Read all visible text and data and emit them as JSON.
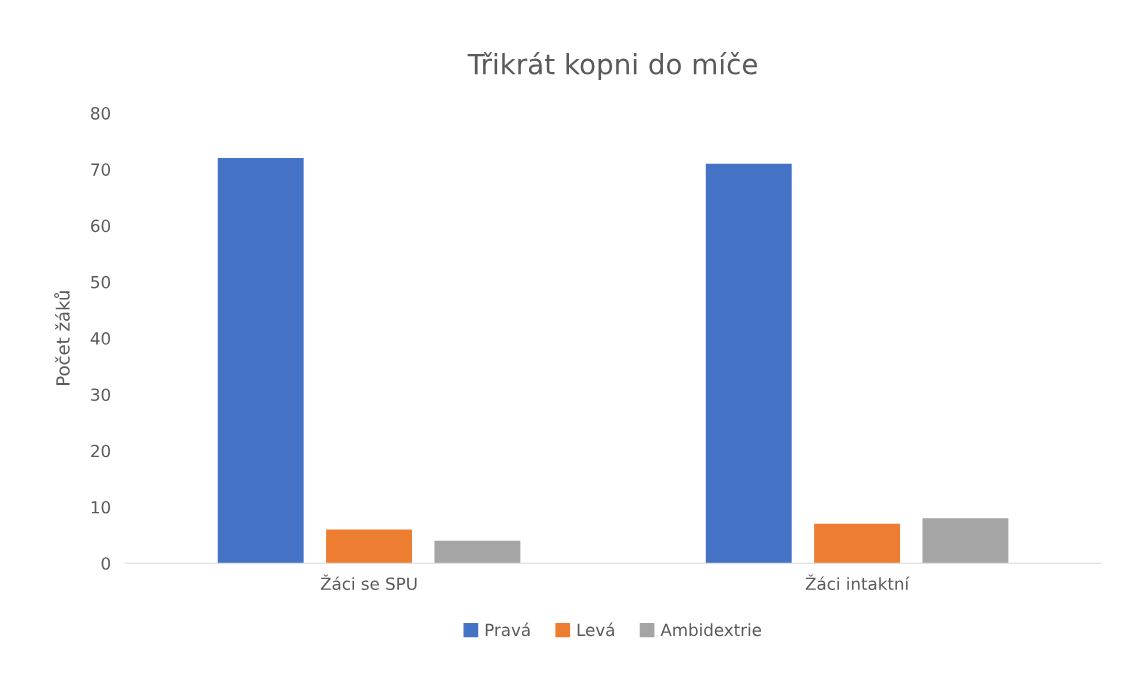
{
  "chart_data": {
    "type": "bar",
    "title": "Třikrát kopni do míče",
    "ylabel": "Počet žáků",
    "categories": [
      "Žáci se SPU",
      "Žáci intaktní"
    ],
    "series": [
      {
        "name": "Pravá",
        "color": "#4472c4",
        "values": [
          72,
          71
        ]
      },
      {
        "name": "Levá",
        "color": "#ed7d31",
        "values": [
          6,
          7
        ]
      },
      {
        "name": "Ambidextrie",
        "color": "#a5a5a5",
        "values": [
          4,
          8
        ]
      }
    ],
    "ylim": [
      0,
      80
    ],
    "yticks": [
      0,
      10,
      20,
      30,
      40,
      50,
      60,
      70,
      80
    ],
    "grid": false,
    "legend": "bottom"
  }
}
